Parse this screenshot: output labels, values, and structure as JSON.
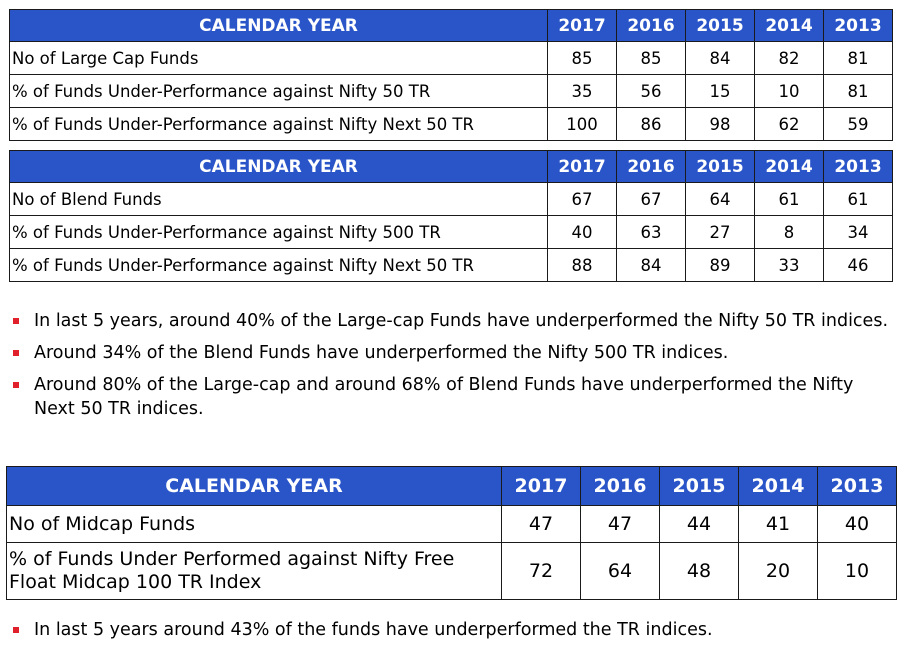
{
  "table1": {
    "header": [
      "CALENDAR YEAR",
      "2017",
      "2016",
      "2015",
      "2014",
      "2013"
    ],
    "rows": [
      {
        "label": "No of Large Cap Funds",
        "values": [
          "85",
          "85",
          "84",
          "82",
          "81"
        ]
      },
      {
        "label": "% of Funds Under-Performance against Nifty 50 TR",
        "values": [
          "35",
          "56",
          "15",
          "10",
          "81"
        ]
      },
      {
        "label": "% of Funds Under-Performance against Nifty Next 50 TR",
        "values": [
          "100",
          "86",
          "98",
          "62",
          "59"
        ]
      }
    ]
  },
  "table2": {
    "header": [
      "CALENDAR YEAR",
      "2017",
      "2016",
      "2015",
      "2014",
      "2013"
    ],
    "rows": [
      {
        "label": "No of Blend Funds",
        "values": [
          "67",
          "67",
          "64",
          "61",
          "61"
        ]
      },
      {
        "label": "% of Funds Under-Performance against Nifty 500 TR",
        "values": [
          "40",
          "63",
          "27",
          "8",
          "34"
        ]
      },
      {
        "label": "% of Funds Under-Performance against Nifty Next 50 TR",
        "values": [
          "88",
          "84",
          "89",
          "33",
          "46"
        ]
      }
    ]
  },
  "bullets1": [
    "In last 5 years, around 40% of the Large-cap Funds have underperformed the Nifty 50 TR indices.",
    "Around 34% of the Blend Funds have underperformed the Nifty 500 TR indices.",
    "Around 80% of the Large-cap and around 68% of Blend Funds have underperformed the Nifty Next 50 TR indices."
  ],
  "table3": {
    "header": [
      "CALENDAR YEAR",
      "2017",
      "2016",
      "2015",
      "2014",
      "2013"
    ],
    "rows": [
      {
        "label": "No of Midcap Funds",
        "values": [
          "47",
          "47",
          "44",
          "41",
          "40"
        ]
      },
      {
        "label": "% of Funds Under Performed against Nifty Free Float Midcap 100 TR Index",
        "values": [
          "72",
          "64",
          "48",
          "20",
          "10"
        ]
      }
    ]
  },
  "bullets2": [
    "In last 5 years around 43% of the funds have underperformed the TR indices."
  ],
  "colors": {
    "header_bg": "#2a55c9",
    "bullet": "#e0202a"
  }
}
